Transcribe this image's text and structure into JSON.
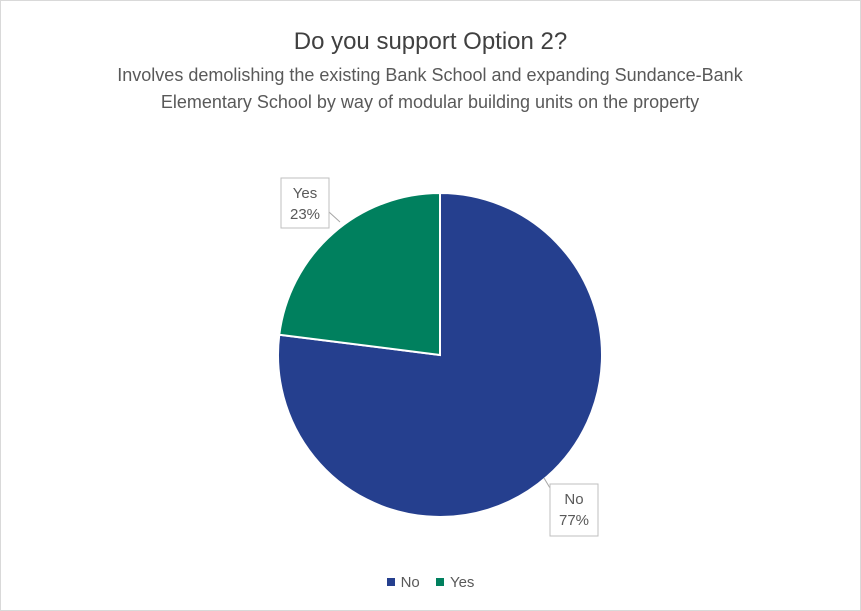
{
  "chart_data": {
    "type": "pie",
    "title": "Do you support Option 2?",
    "subtitle": "Involves demolishing the existing Bank School and expanding Sundance-Bank Elementary School by way of modular building units on the property",
    "slices": [
      {
        "name": "No",
        "value": 77,
        "label": "77%",
        "color": "#253f8e"
      },
      {
        "name": "Yes",
        "value": 23,
        "label": "23%",
        "color": "#00805e"
      }
    ],
    "legend": [
      "No",
      "Yes"
    ],
    "legend_position": "bottom"
  }
}
